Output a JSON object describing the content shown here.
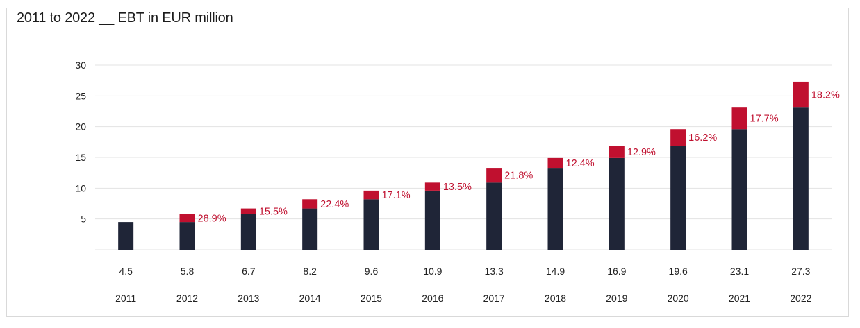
{
  "chart_data": {
    "type": "bar",
    "title": "2011 to 2022 __ EBT in EUR million",
    "categories": [
      "2011",
      "2012",
      "2013",
      "2014",
      "2015",
      "2016",
      "2017",
      "2018",
      "2019",
      "2020",
      "2021",
      "2022"
    ],
    "values": [
      4.5,
      5.8,
      6.7,
      8.2,
      9.6,
      10.9,
      13.3,
      14.9,
      16.9,
      19.6,
      23.1,
      27.3
    ],
    "value_labels": [
      "4.5",
      "5.8",
      "6.7",
      "8.2",
      "9.6",
      "10.9",
      "13.3",
      "14.9",
      "16.9",
      "19.6",
      "23.1",
      "27.3"
    ],
    "growth_labels": [
      "",
      "28.9%",
      "15.5%",
      "22.4%",
      "17.1%",
      "13.5%",
      "21.8%",
      "12.4%",
      "12.9%",
      "16.2%",
      "17.7%",
      "18.2%"
    ],
    "ylim": [
      0,
      30
    ],
    "yticks": [
      5,
      10,
      15,
      20,
      25,
      30
    ],
    "grid": true,
    "colors": {
      "base": "#1f2537",
      "increase": "#c0102f",
      "grid": "#e3e3e3"
    }
  }
}
